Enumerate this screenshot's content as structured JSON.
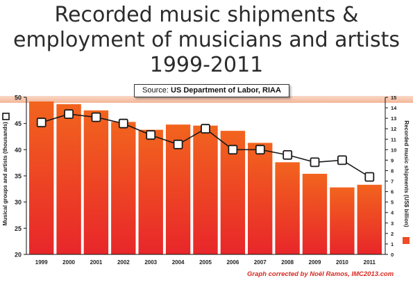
{
  "title_lines": [
    "Recorded music shipments &",
    "employment of musicians and artists",
    "1999-2011"
  ],
  "source_label": "Source:",
  "source_value": "US Department of Labor, RIAA",
  "credit": "Graph corrected by Noël Ramos, IMC2013.com",
  "colors": {
    "bar_top": "#f2641e",
    "bar_bottom": "#e8262a",
    "band": "#f6c8b0",
    "line": "#1a1a1a",
    "marker_fill": "#ffffff",
    "legend_bar": "#ef4b25"
  },
  "chart_data": {
    "type": "bar+line",
    "categories": [
      "1999",
      "2000",
      "2001",
      "2002",
      "2003",
      "2004",
      "2005",
      "2006",
      "2007",
      "2008",
      "2009",
      "2010",
      "2011"
    ],
    "series": [
      {
        "name": "Musical groups and artists (thousands)",
        "kind": "bar",
        "axis": "left",
        "values": [
          49.2,
          48.7,
          47.5,
          45.3,
          43.8,
          44.8,
          44.6,
          43.6,
          41.3,
          37.6,
          35.4,
          32.8,
          33.3
        ]
      },
      {
        "name": "Recorded music shipments (US$ billion)",
        "kind": "line",
        "axis": "right",
        "values": [
          12.6,
          13.4,
          13.1,
          12.5,
          11.4,
          10.5,
          12.0,
          10.0,
          10.0,
          9.5,
          8.8,
          9.0,
          7.4
        ]
      }
    ],
    "y_left": {
      "label": "Musical groups and artists (thousands)",
      "range": [
        20,
        50
      ],
      "ticks": [
        20,
        25,
        30,
        35,
        40,
        45,
        50
      ]
    },
    "y_right": {
      "label": "Recorded music shipments (US$ billion)",
      "range": [
        0,
        15
      ],
      "ticks": [
        0,
        1,
        2,
        3,
        4,
        5,
        6,
        7,
        8,
        9,
        10,
        11,
        12,
        13,
        14,
        15
      ]
    },
    "grid": false,
    "legend": "axis-end markers"
  }
}
